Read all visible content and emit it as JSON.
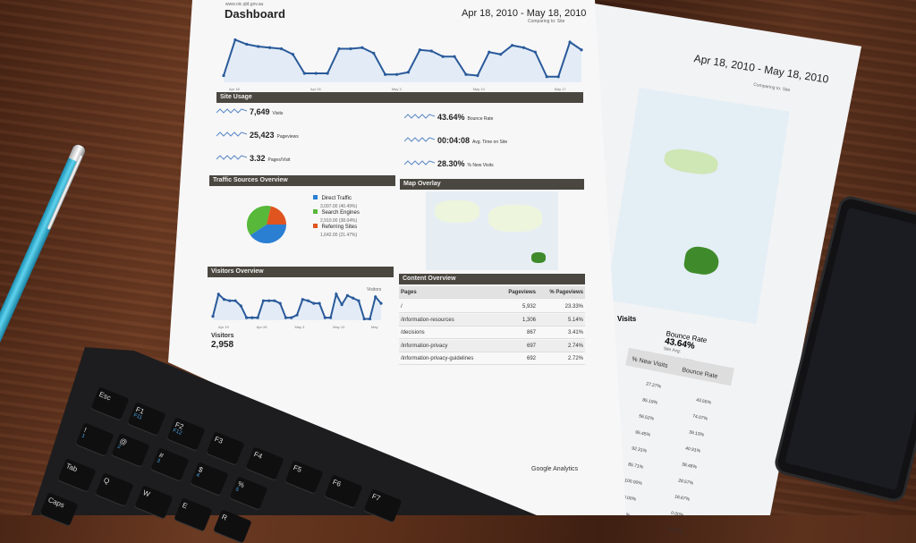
{
  "report": {
    "site": "www.oic.qld.gov.au",
    "title": "Dashboard",
    "date_range": "Apr 18, 2010 - May 18, 2010",
    "comparing": "Comparing to: Site",
    "main_chart": {
      "x_labels": [
        "Apr 18",
        "Apr 26",
        "May 3",
        "May 10",
        "May 17"
      ],
      "values": [
        60,
        380,
        340,
        320,
        310,
        300,
        250,
        80,
        80,
        80,
        300,
        300,
        310,
        260,
        70,
        70,
        90,
        290,
        280,
        230,
        230,
        70,
        60,
        270,
        250,
        330,
        310,
        270,
        50,
        50,
        360,
        290
      ]
    },
    "site_usage": {
      "title": "Site Usage",
      "metrics": [
        {
          "value": "7,649",
          "label": "Visits"
        },
        {
          "value": "25,423",
          "label": "Pageviews"
        },
        {
          "value": "3.32",
          "label": "Pages/Visit"
        },
        {
          "value": "43.64%",
          "label": "Bounce Rate"
        },
        {
          "value": "00:04:08",
          "label": "Avg. Time on Site"
        },
        {
          "value": "28.30%",
          "label": "% New Visits"
        }
      ]
    },
    "traffic_sources": {
      "title": "Traffic Sources Overview",
      "items": [
        {
          "label": "Direct Traffic",
          "detail": "3,097.00 (40.49%)",
          "color": "#2b7fd3",
          "pct": 40.49
        },
        {
          "label": "Search Engines",
          "detail": "2,910.00 (38.04%)",
          "color": "#57b83a",
          "pct": 38.04
        },
        {
          "label": "Referring Sites",
          "detail": "1,642.00 (21.47%)",
          "color": "#e0541f",
          "pct": 21.47
        }
      ]
    },
    "map_overlay": {
      "title": "Map Overlay"
    },
    "visitors_overview": {
      "title": "Visitors Overview",
      "legend": "Visitors",
      "label": "Visitors",
      "value": "2,958",
      "x_labels": [
        "Apr 19",
        "Apr 26",
        "May 3",
        "May 10",
        "May"
      ],
      "values": [
        30,
        200,
        160,
        150,
        150,
        110,
        20,
        20,
        20,
        150,
        150,
        150,
        130,
        20,
        20,
        40,
        160,
        150,
        130,
        130,
        20,
        20,
        200,
        120,
        190,
        170,
        150,
        10,
        10,
        180,
        130
      ]
    },
    "content_overview": {
      "title": "Content Overview",
      "headers": [
        "Pages",
        "Pageviews",
        "% Pageviews"
      ],
      "rows": [
        [
          "/",
          "5,932",
          "23.33%"
        ],
        [
          "/information-resources",
          "1,306",
          "5.14%"
        ],
        [
          "/decisions",
          "867",
          "3.41%"
        ],
        [
          "/information-privacy",
          "697",
          "2.74%"
        ],
        [
          "/information-privacy-guidelines",
          "692",
          "2.72%"
        ]
      ]
    },
    "footer": "Google Analytics"
  },
  "report2": {
    "date_range": "Apr 18, 2010 - May 18, 2010",
    "comparing": "Comparing to: Site",
    "visits_header": "Visits",
    "bounce": {
      "label": "Bounce Rate",
      "value": "43.64%",
      "site_avg": "Site Avg:",
      "avg_value": "43.64% (0.00%)"
    },
    "headers": [
      "% New Visits",
      "Bounce Rate"
    ],
    "new_visits": [
      "27.27%",
      "85.19%",
      "56.52%",
      "95.45%",
      "92.31%",
      "85.71%",
      "100.00%",
      "40.00%",
      "0.00%"
    ],
    "bounce_rates": [
      "43.55%",
      "74.07%",
      "39.13%",
      "40.91%",
      "38.46%",
      "28.57%",
      "16.67%",
      "0.00%",
      "80.00%"
    ]
  },
  "keyboard": {
    "keys": [
      {
        "label": "Esc",
        "fn": ""
      },
      {
        "label": "F1",
        "fn": "F11"
      },
      {
        "label": "F2",
        "fn": "F12"
      },
      {
        "label": "F3",
        "fn": ""
      },
      {
        "label": "F4",
        "fn": ""
      },
      {
        "label": "F5",
        "fn": ""
      },
      {
        "label": "F6",
        "fn": ""
      },
      {
        "label": "F7",
        "fn": ""
      },
      {
        "label": "!",
        "fn": "1"
      },
      {
        "label": "@",
        "fn": "2"
      },
      {
        "label": "#",
        "fn": "3"
      },
      {
        "label": "$",
        "fn": "4"
      },
      {
        "label": "%",
        "fn": "5"
      },
      {
        "label": "Tab",
        "fn": ""
      },
      {
        "label": "Q",
        "fn": ""
      },
      {
        "label": "W",
        "fn": ""
      },
      {
        "label": "E",
        "fn": ""
      },
      {
        "label": "R",
        "fn": ""
      },
      {
        "label": "Caps",
        "fn": ""
      }
    ]
  }
}
